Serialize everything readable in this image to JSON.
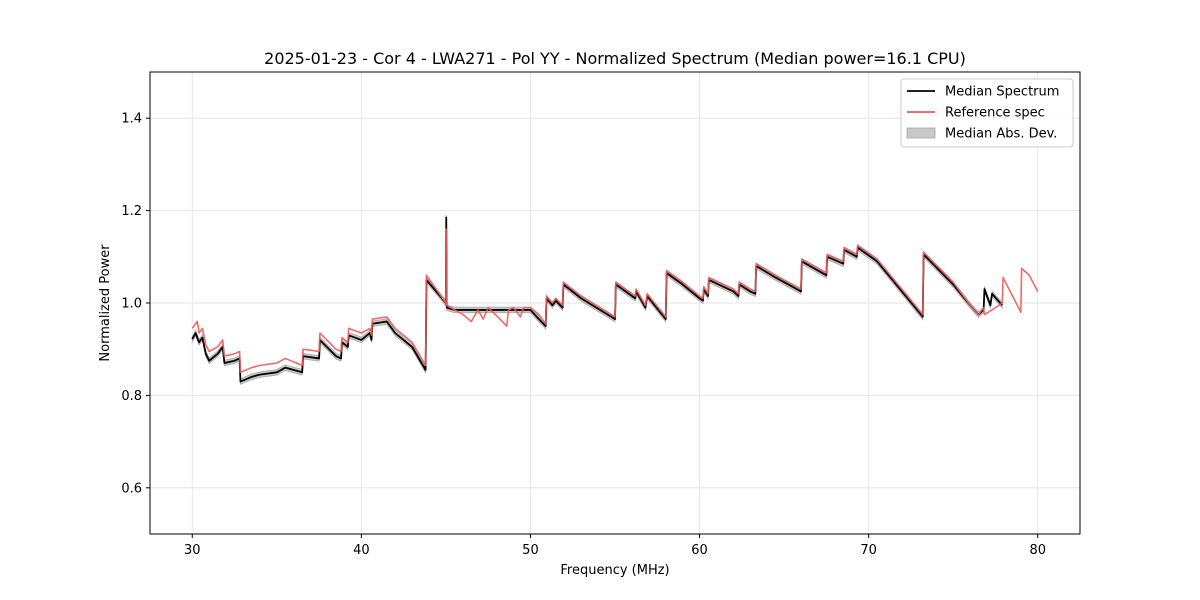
{
  "chart_data": {
    "type": "line",
    "title": "2025-01-23 - Cor 4 - LWA271 - Pol YY - Normalized Spectrum (Median power=16.1 CPU)",
    "xlabel": "Frequency (MHz)",
    "ylabel": "Normalized Power",
    "xlim": [
      27.5,
      82.5
    ],
    "ylim": [
      0.5,
      1.5
    ],
    "xticks": [
      30,
      40,
      50,
      60,
      70,
      80
    ],
    "yticks": [
      0.6,
      0.8,
      1.0,
      1.2,
      1.4
    ],
    "xtick_labels": [
      "30",
      "40",
      "50",
      "60",
      "70",
      "80"
    ],
    "ytick_labels": [
      "0.6",
      "0.8",
      "1.0",
      "1.2",
      "1.4"
    ],
    "grid": true,
    "legend_position": "top-right",
    "mad": 0.006,
    "series": [
      {
        "name": "Median Spectrum",
        "color": "#000000",
        "points": [
          [
            30.0,
            0.922
          ],
          [
            30.2,
            0.935
          ],
          [
            30.4,
            0.915
          ],
          [
            30.6,
            0.925
          ],
          [
            30.8,
            0.89
          ],
          [
            31.0,
            0.875
          ],
          [
            31.5,
            0.89
          ],
          [
            31.8,
            0.905
          ],
          [
            31.9,
            0.87
          ],
          [
            32.5,
            0.875
          ],
          [
            32.8,
            0.88
          ],
          [
            32.85,
            0.83
          ],
          [
            33.5,
            0.84
          ],
          [
            34.0,
            0.845
          ],
          [
            35.0,
            0.85
          ],
          [
            35.5,
            0.86
          ],
          [
            36.5,
            0.85
          ],
          [
            36.55,
            0.885
          ],
          [
            37.5,
            0.88
          ],
          [
            37.55,
            0.92
          ],
          [
            38.5,
            0.885
          ],
          [
            38.8,
            0.88
          ],
          [
            38.85,
            0.915
          ],
          [
            39.2,
            0.905
          ],
          [
            39.25,
            0.93
          ],
          [
            40.0,
            0.92
          ],
          [
            40.5,
            0.935
          ],
          [
            40.6,
            0.92
          ],
          [
            40.65,
            0.955
          ],
          [
            41.5,
            0.96
          ],
          [
            42.0,
            0.935
          ],
          [
            43.0,
            0.905
          ],
          [
            43.8,
            0.855
          ],
          [
            43.85,
            1.05
          ],
          [
            45.0,
            1.0
          ],
          [
            45.02,
            1.185
          ],
          [
            45.05,
            0.99
          ],
          [
            45.5,
            0.985
          ],
          [
            50.0,
            0.985
          ],
          [
            50.5,
            0.965
          ],
          [
            50.9,
            0.95
          ],
          [
            50.95,
            1.01
          ],
          [
            51.3,
            0.995
          ],
          [
            51.5,
            1.005
          ],
          [
            51.9,
            0.99
          ],
          [
            51.95,
            1.04
          ],
          [
            53.0,
            1.01
          ],
          [
            55.0,
            0.965
          ],
          [
            55.05,
            1.04
          ],
          [
            56.2,
            1.01
          ],
          [
            56.25,
            1.025
          ],
          [
            56.8,
            0.99
          ],
          [
            56.9,
            1.015
          ],
          [
            58.0,
            0.965
          ],
          [
            58.05,
            1.065
          ],
          [
            59.0,
            1.04
          ],
          [
            60.0,
            1.01
          ],
          [
            60.2,
            1.005
          ],
          [
            60.25,
            1.03
          ],
          [
            60.5,
            1.015
          ],
          [
            60.55,
            1.05
          ],
          [
            62.0,
            1.025
          ],
          [
            62.3,
            1.015
          ],
          [
            62.35,
            1.04
          ],
          [
            63.0,
            1.025
          ],
          [
            63.3,
            1.02
          ],
          [
            63.35,
            1.08
          ],
          [
            64.5,
            1.055
          ],
          [
            66.0,
            1.025
          ],
          [
            66.05,
            1.09
          ],
          [
            67.5,
            1.06
          ],
          [
            67.55,
            1.1
          ],
          [
            68.5,
            1.085
          ],
          [
            68.55,
            1.115
          ],
          [
            69.3,
            1.1
          ],
          [
            69.35,
            1.12
          ],
          [
            70.5,
            1.09
          ],
          [
            73.2,
            0.97
          ],
          [
            73.25,
            1.105
          ],
          [
            75.0,
            1.04
          ],
          [
            76.0,
            0.995
          ],
          [
            76.5,
            0.975
          ],
          [
            76.8,
            0.985
          ],
          [
            76.85,
            1.03
          ],
          [
            77.2,
            0.995
          ],
          [
            77.3,
            1.02
          ],
          [
            77.9,
            0.995
          ]
        ]
      },
      {
        "name": "Reference spec",
        "color": "#f05a5a",
        "points": [
          [
            30.0,
            0.945
          ],
          [
            30.3,
            0.96
          ],
          [
            30.4,
            0.935
          ],
          [
            30.6,
            0.945
          ],
          [
            30.8,
            0.91
          ],
          [
            31.0,
            0.895
          ],
          [
            31.5,
            0.905
          ],
          [
            31.8,
            0.92
          ],
          [
            31.9,
            0.885
          ],
          [
            32.5,
            0.89
          ],
          [
            32.8,
            0.895
          ],
          [
            32.85,
            0.85
          ],
          [
            33.5,
            0.86
          ],
          [
            34.0,
            0.865
          ],
          [
            35.0,
            0.87
          ],
          [
            35.5,
            0.88
          ],
          [
            36.5,
            0.865
          ],
          [
            36.55,
            0.9
          ],
          [
            37.5,
            0.895
          ],
          [
            37.55,
            0.935
          ],
          [
            38.5,
            0.9
          ],
          [
            38.8,
            0.895
          ],
          [
            38.85,
            0.925
          ],
          [
            39.2,
            0.915
          ],
          [
            39.25,
            0.945
          ],
          [
            40.0,
            0.935
          ],
          [
            40.5,
            0.945
          ],
          [
            40.6,
            0.93
          ],
          [
            40.65,
            0.965
          ],
          [
            41.5,
            0.97
          ],
          [
            42.0,
            0.945
          ],
          [
            43.0,
            0.915
          ],
          [
            43.8,
            0.865
          ],
          [
            43.85,
            1.06
          ],
          [
            45.0,
            1.0
          ],
          [
            45.02,
            1.16
          ],
          [
            45.05,
            0.995
          ],
          [
            46.0,
            0.975
          ],
          [
            46.5,
            0.96
          ],
          [
            46.9,
            0.985
          ],
          [
            47.2,
            0.965
          ],
          [
            47.5,
            0.99
          ],
          [
            48.2,
            0.965
          ],
          [
            48.6,
            0.95
          ],
          [
            48.7,
            0.985
          ],
          [
            49.0,
            0.99
          ],
          [
            49.4,
            0.97
          ],
          [
            49.6,
            0.99
          ],
          [
            50.0,
            0.99
          ],
          [
            50.5,
            0.975
          ],
          [
            50.9,
            0.955
          ],
          [
            50.95,
            1.015
          ],
          [
            51.3,
            1.0
          ],
          [
            51.5,
            1.01
          ],
          [
            51.9,
            0.995
          ],
          [
            51.95,
            1.045
          ],
          [
            53.0,
            1.015
          ],
          [
            55.0,
            0.97
          ],
          [
            55.05,
            1.045
          ],
          [
            56.2,
            1.015
          ],
          [
            56.25,
            1.03
          ],
          [
            56.8,
            0.995
          ],
          [
            56.9,
            1.02
          ],
          [
            58.0,
            0.97
          ],
          [
            58.05,
            1.07
          ],
          [
            59.0,
            1.045
          ],
          [
            60.0,
            1.015
          ],
          [
            60.2,
            1.01
          ],
          [
            60.25,
            1.035
          ],
          [
            60.5,
            1.02
          ],
          [
            60.55,
            1.055
          ],
          [
            62.0,
            1.03
          ],
          [
            62.3,
            1.02
          ],
          [
            62.35,
            1.045
          ],
          [
            63.0,
            1.03
          ],
          [
            63.3,
            1.025
          ],
          [
            63.35,
            1.085
          ],
          [
            64.5,
            1.06
          ],
          [
            66.0,
            1.03
          ],
          [
            66.05,
            1.095
          ],
          [
            67.5,
            1.065
          ],
          [
            67.55,
            1.105
          ],
          [
            68.5,
            1.09
          ],
          [
            68.55,
            1.12
          ],
          [
            69.3,
            1.105
          ],
          [
            69.35,
            1.125
          ],
          [
            70.5,
            1.095
          ],
          [
            73.2,
            0.975
          ],
          [
            73.25,
            1.11
          ],
          [
            75.0,
            1.045
          ],
          [
            76.0,
            0.995
          ],
          [
            76.5,
            0.975
          ],
          [
            76.8,
            0.99
          ],
          [
            76.85,
            0.975
          ],
          [
            77.3,
            0.985
          ],
          [
            77.9,
            1.0
          ],
          [
            77.95,
            1.055
          ],
          [
            79.0,
            0.98
          ],
          [
            79.05,
            1.075
          ],
          [
            79.5,
            1.06
          ],
          [
            80.0,
            1.025
          ]
        ]
      }
    ],
    "legend": [
      {
        "label": "Median Spectrum",
        "kind": "line",
        "color": "#000000"
      },
      {
        "label": "Reference spec",
        "kind": "line",
        "color": "#f05a5a"
      },
      {
        "label": "Median Abs. Dev.",
        "kind": "patch",
        "color": "#c8c8c8"
      }
    ]
  }
}
